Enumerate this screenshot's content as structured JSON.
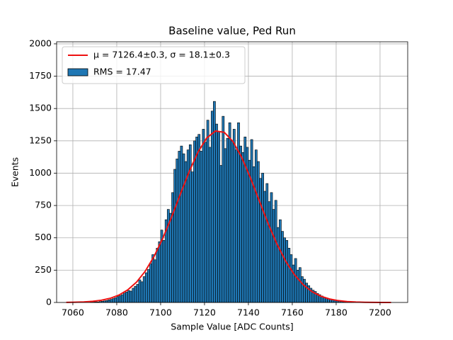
{
  "chart_data": {
    "type": "histogram",
    "title": "Baseline value, Ped Run",
    "xlabel": "Sample Value [ADC Counts]",
    "ylabel": "Events",
    "name": "RMS = 17.47",
    "color": "#1f77b4",
    "edgecolor": "#000000",
    "bins": [
      7068,
      7069,
      7070,
      7071,
      7072,
      7073,
      7074,
      7075,
      7076,
      7077,
      7078,
      7079,
      7080,
      7081,
      7082,
      7083,
      7084,
      7085,
      7086,
      7087,
      7088,
      7089,
      7090,
      7091,
      7092,
      7093,
      7094,
      7095,
      7096,
      7097,
      7098,
      7099,
      7100,
      7101,
      7102,
      7103,
      7104,
      7105,
      7106,
      7107,
      7108,
      7109,
      7110,
      7111,
      7112,
      7113,
      7114,
      7115,
      7116,
      7117,
      7118,
      7119,
      7120,
      7121,
      7122,
      7123,
      7124,
      7125,
      7126,
      7127,
      7128,
      7129,
      7130,
      7131,
      7132,
      7133,
      7134,
      7135,
      7136,
      7137,
      7138,
      7139,
      7140,
      7141,
      7142,
      7143,
      7144,
      7145,
      7146,
      7147,
      7148,
      7149,
      7150,
      7151,
      7152,
      7153,
      7154,
      7155,
      7156,
      7157,
      7158,
      7159,
      7160,
      7161,
      7162,
      7163,
      7164,
      7165,
      7166,
      7167,
      7168,
      7169,
      7170,
      7171,
      7172,
      7173,
      7174,
      7175,
      7176,
      7177,
      7178,
      7179,
      7180,
      7181,
      7182,
      7183,
      7184,
      7185,
      7186,
      7187,
      7188
    ],
    "values": [
      2,
      3,
      5,
      4,
      7,
      9,
      12,
      15,
      20,
      24,
      30,
      36,
      45,
      52,
      60,
      72,
      80,
      92,
      88,
      110,
      125,
      140,
      175,
      160,
      200,
      230,
      255,
      300,
      370,
      330,
      420,
      470,
      560,
      480,
      640,
      720,
      690,
      850,
      1030,
      1110,
      1170,
      1210,
      1150,
      1090,
      1180,
      1220,
      1010,
      1250,
      1280,
      1300,
      1170,
      1340,
      1240,
      1410,
      1200,
      1480,
      1555,
      1380,
      1320,
      1060,
      1440,
      1190,
      1270,
      1390,
      1250,
      1340,
      1180,
      1390,
      1210,
      1160,
      1280,
      1200,
      1100,
      1260,
      1050,
      1180,
      1090,
      960,
      1000,
      860,
      920,
      780,
      850,
      720,
      790,
      580,
      640,
      550,
      500,
      480,
      420,
      370,
      290,
      340,
      250,
      270,
      200,
      180,
      150,
      130,
      110,
      95,
      85,
      70,
      60,
      50,
      42,
      35,
      30,
      25,
      20,
      16,
      13,
      10,
      8,
      6,
      5,
      4,
      3,
      2
    ],
    "fit": {
      "type": "line",
      "name": "μ = 7126.4±0.3, σ = 18.1±0.3",
      "color": "#ee1111",
      "x": [
        7057,
        7061,
        7065,
        7069,
        7073,
        7077,
        7081,
        7085,
        7089,
        7093,
        7097,
        7101,
        7105,
        7109,
        7113,
        7117,
        7121,
        7125,
        7129,
        7133,
        7137,
        7141,
        7145,
        7149,
        7153,
        7157,
        7161,
        7165,
        7169,
        7173,
        7177,
        7181,
        7185,
        7189,
        7193,
        7197,
        7201,
        7205
      ],
      "values": [
        0.9,
        1.9,
        4.2,
        8.7,
        17.1,
        32.1,
        57.2,
        97.2,
        157,
        242,
        356,
        497,
        661,
        838,
        1011,
        1162,
        1272,
        1326,
        1316,
        1244,
        1120,
        961,
        784,
        610,
        452,
        319,
        214,
        137,
        83.4,
        48.4,
        26.7,
        14.1,
        7.0,
        3.4,
        1.5,
        0.7,
        0.3,
        0.1
      ]
    },
    "xlim": [
      7052.6,
      7212.6
    ],
    "ylim": [
      0,
      2016
    ],
    "xticks": [
      7060,
      7080,
      7100,
      7120,
      7140,
      7160,
      7180,
      7200
    ],
    "yticks": [
      0,
      250,
      500,
      750,
      1000,
      1250,
      1500,
      1750,
      2000
    ],
    "grid": true,
    "legend": "upper left"
  }
}
